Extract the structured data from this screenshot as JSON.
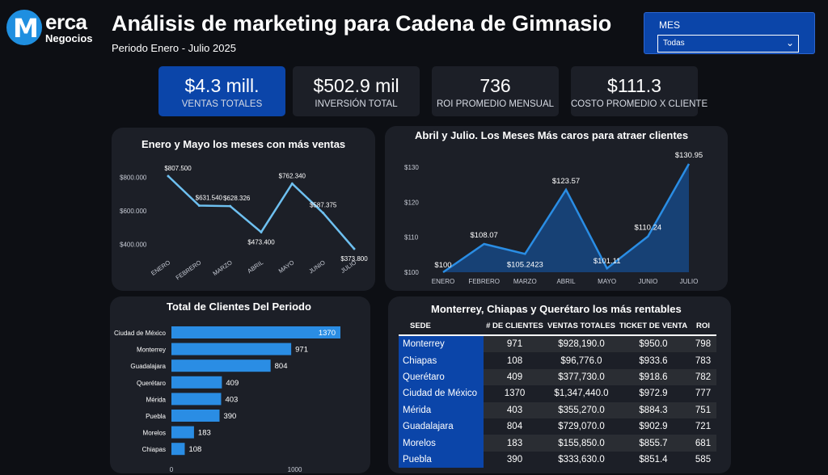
{
  "brand": {
    "logo_letter": "M",
    "logo_word": "erca",
    "logo_sub": "Negocios",
    "accent": "#1f8fe0"
  },
  "header": {
    "title": "Análisis de marketing para Cadena de Gimnasio",
    "subtitle": "Periodo Enero - Julio 2025"
  },
  "slicer": {
    "label": "MES",
    "value": "Todas"
  },
  "kpis": [
    {
      "value": "$4.3 mill.",
      "label": "VENTAS TOTALES"
    },
    {
      "value": "$502.9 mil",
      "label": "INVERSIÓN TOTAL"
    },
    {
      "value": "736",
      "label": "ROI PROMEDIO MENSUAL"
    },
    {
      "value": "$111.3",
      "label": "COSTO PROMEDIO X CLIENTE"
    }
  ],
  "chart_data": [
    {
      "type": "line",
      "title": "Enero y Mayo los meses con más ventas",
      "categories": [
        "ENERO",
        "FEBRERO",
        "MARZO",
        "ABRIL",
        "MAYO",
        "JUNIO",
        "JULIO"
      ],
      "values": [
        807500,
        631540,
        628326,
        473400,
        762340,
        587375,
        373800
      ],
      "data_labels": [
        "$807.500",
        "$631.540",
        "$628.326",
        "$473.400",
        "$762.340",
        "$587.375",
        "$373.800"
      ],
      "y_ticks": [
        800000,
        600000,
        400000
      ],
      "y_tick_labels": [
        "$800.000",
        "$600.000",
        "$400.000"
      ],
      "ylim": [
        373800,
        807500
      ],
      "color": "#6ec0f0"
    },
    {
      "type": "area",
      "title": "Abril y Julio. Los Meses Más caros para atraer clientes",
      "categories": [
        "ENERO",
        "FEBRERO",
        "MARZO",
        "ABRIL",
        "MAYO",
        "JUNIO",
        "JULIO"
      ],
      "values": [
        100,
        108.07,
        105.2423,
        123.57,
        101.11,
        110.24,
        130.95
      ],
      "data_labels": [
        "$100",
        "$108.07",
        "$105.2423",
        "$123.57",
        "$101.11",
        "$110.24",
        "$130.95"
      ],
      "y_ticks": [
        130,
        120,
        110,
        100
      ],
      "y_tick_labels": [
        "$130",
        "$120",
        "$110",
        "$100"
      ],
      "ylim": [
        100,
        130
      ],
      "color": "#2a8de4"
    },
    {
      "type": "bar",
      "orientation": "horizontal",
      "title": "Total de Clientes Del Periodo",
      "categories": [
        "Ciudad de México",
        "Monterrey",
        "Guadalajara",
        "Querétaro",
        "Mérida",
        "Puebla",
        "Morelos",
        "Chiapas"
      ],
      "values": [
        1370,
        971,
        804,
        409,
        403,
        390,
        183,
        108
      ],
      "x_ticks": [
        0,
        1000
      ],
      "x_tick_labels": [
        "0",
        "1000"
      ],
      "xlim": [
        0,
        1370
      ],
      "color": "#2a8de4"
    },
    {
      "type": "table",
      "title": "Monterrey, Chiapas y Querétaro los más rentables",
      "columns": [
        "SEDE",
        "# DE CLIENTES",
        "VENTAS TOTALES",
        "TICKET DE VENTA",
        "ROI"
      ],
      "rows": [
        [
          "Monterrey",
          "971",
          "$928,190.0",
          "$950.0",
          "798"
        ],
        [
          "Chiapas",
          "108",
          "$96,776.0",
          "$933.6",
          "783"
        ],
        [
          "Querétaro",
          "409",
          "$377,730.0",
          "$918.6",
          "782"
        ],
        [
          "Ciudad de México",
          "1370",
          "$1,347,440.0",
          "$972.9",
          "777"
        ],
        [
          "Mérida",
          "403",
          "$355,270.0",
          "$884.3",
          "751"
        ],
        [
          "Guadalajara",
          "804",
          "$729,070.0",
          "$902.9",
          "721"
        ],
        [
          "Morelos",
          "183",
          "$155,850.0",
          "$855.7",
          "681"
        ],
        [
          "Puebla",
          "390",
          "$333,630.0",
          "$851.4",
          "585"
        ]
      ]
    }
  ]
}
